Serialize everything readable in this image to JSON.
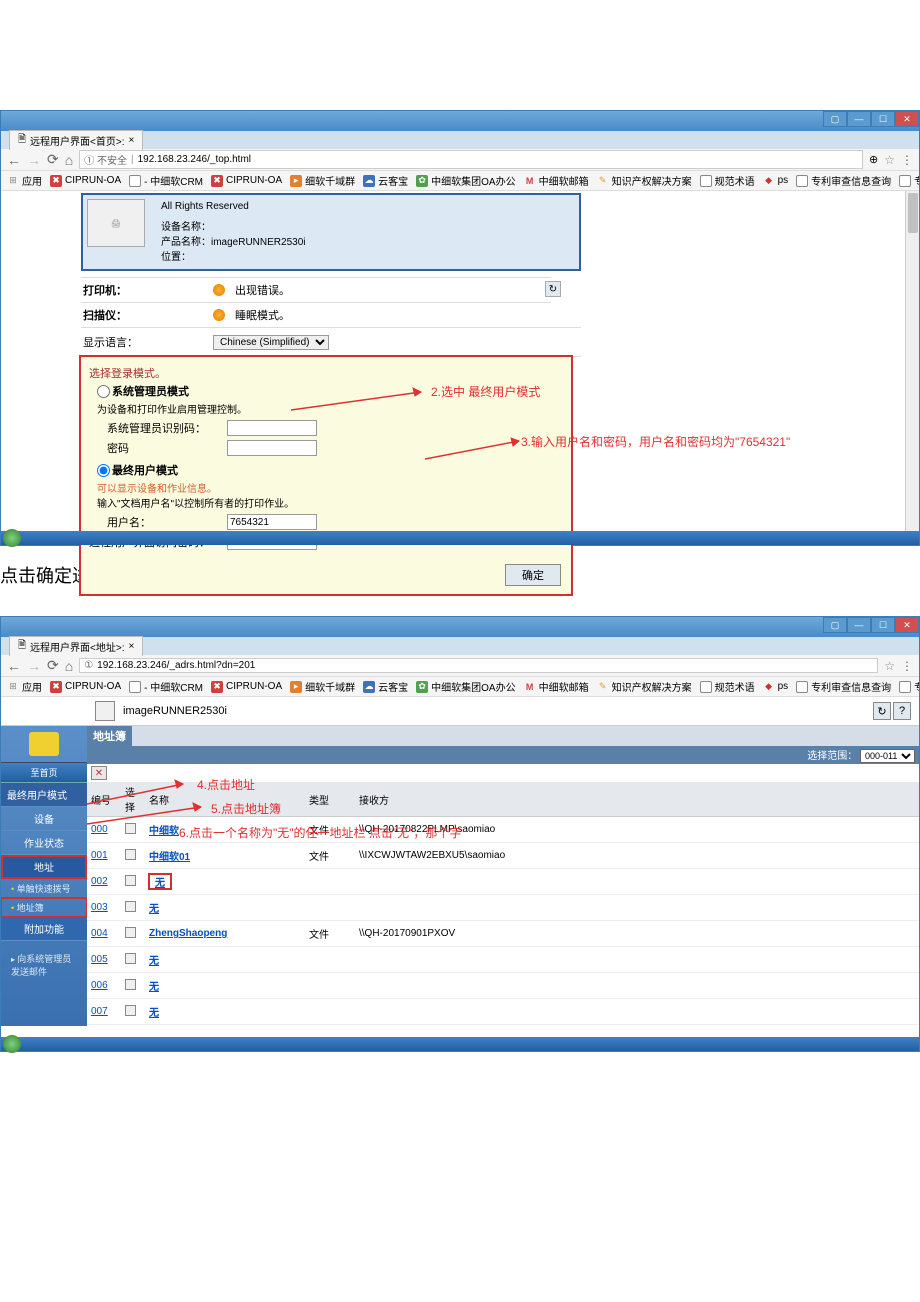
{
  "screenshot1": {
    "tab_title": "远程用户界面<首页>:",
    "url_prefix": "① 不安全",
    "url": "192.168.23.246/_top.html",
    "bookmarks": {
      "apps": "应用",
      "ciprun1": "CIPRUN-OA",
      "crm": "- 中细软CRM",
      "ciprun2": "CIPRUN-OA",
      "qianyu": "细软千域群",
      "yunke": "云客宝",
      "oa": "中细软集团OA办公",
      "mail": "中细软邮箱",
      "zhishi": "知识产权解决方案",
      "guifan": "规范术语",
      "ps": "ps",
      "shencha": "专利审查信息查询",
      "xiazai": "专利下载"
    },
    "info": {
      "rights": "All Rights Reserved",
      "dev_name_label": "设备名称：",
      "prod_label": "产品名称：",
      "prod_value": "imageRUNNER2530i",
      "pos_label": "位置："
    },
    "status": {
      "printer_label": "打印机：",
      "printer_status": "出现错误。",
      "scanner_label": "扫描仪：",
      "scanner_status": "睡眠模式。"
    },
    "lang_label": "显示语言：",
    "lang_value": "Chinese (Simplified)",
    "login": {
      "mode_title": "选择登录模式。",
      "admin_mode": "系统管理员模式",
      "admin_desc": "为设备和打印作业启用管理控制。",
      "admin_id_label": "系统管理员识别码：",
      "pwd_label": "密码",
      "end_user_mode": "最终用户模式",
      "end_user_desc1": "可以显示设备和作业信息。",
      "end_user_desc2": "输入\"文档用户名\"以控制所有者的打印作业。",
      "username_label": "用户名：",
      "username_value": "7654321",
      "remote_pwd_label": "远程用户界面访问密码：",
      "remote_pwd_value": "•••••••",
      "confirm": "确定"
    },
    "anno2": "2.选中 最终用户模式",
    "anno3": "3.输入用户名和密码，用户名和密码均为\"7654321\""
  },
  "caption": "点击确定进入远程用户界面",
  "screenshot2": {
    "tab_title": "远程用户界面<地址>:",
    "url_prefix": "①",
    "url": "192.168.23.246/_adrs.html?dn=201",
    "header_title": "imageRUNNER2530i",
    "sidebar": {
      "home_btn": "至首页",
      "enduser": "最终用户模式",
      "device": "设备",
      "job": "作业状态",
      "addr": "地址",
      "quick": "单触快速拨号",
      "addrbook": "地址簿",
      "addon": "附加功能",
      "sendmail": "向系统管理员发送邮件"
    },
    "crumb": "地址簿",
    "range_label": "选择范围：",
    "range_value": "000-011",
    "cols": {
      "num": "编号",
      "sel": "选择",
      "name": "名称",
      "type": "类型",
      "dest": "接收方"
    },
    "rows": [
      {
        "num": "000",
        "name": "中细软",
        "type": "文件",
        "dest": "\\\\QH-20170822PLMP\\saomiao"
      },
      {
        "num": "001",
        "name": "中细软01",
        "type": "文件",
        "dest": "\\\\IXCWJWTAW2EBXU5\\saomiao"
      },
      {
        "num": "002",
        "name": "无",
        "type": "",
        "dest": ""
      },
      {
        "num": "003",
        "name": "无",
        "type": "",
        "dest": ""
      },
      {
        "num": "004",
        "name": "ZhengShaopeng",
        "type": "文件",
        "dest": "\\\\QH-20170901PXOV"
      },
      {
        "num": "005",
        "name": "无",
        "type": "",
        "dest": ""
      },
      {
        "num": "006",
        "name": "无",
        "type": "",
        "dest": ""
      },
      {
        "num": "007",
        "name": "无",
        "type": "",
        "dest": ""
      }
    ],
    "anno4": "4.点击地址",
    "anno5": "5.点击地址簿",
    "anno6": "6.点击一个名称为\"无\"的任一地址栏    点击\"无\"，那个字"
  }
}
